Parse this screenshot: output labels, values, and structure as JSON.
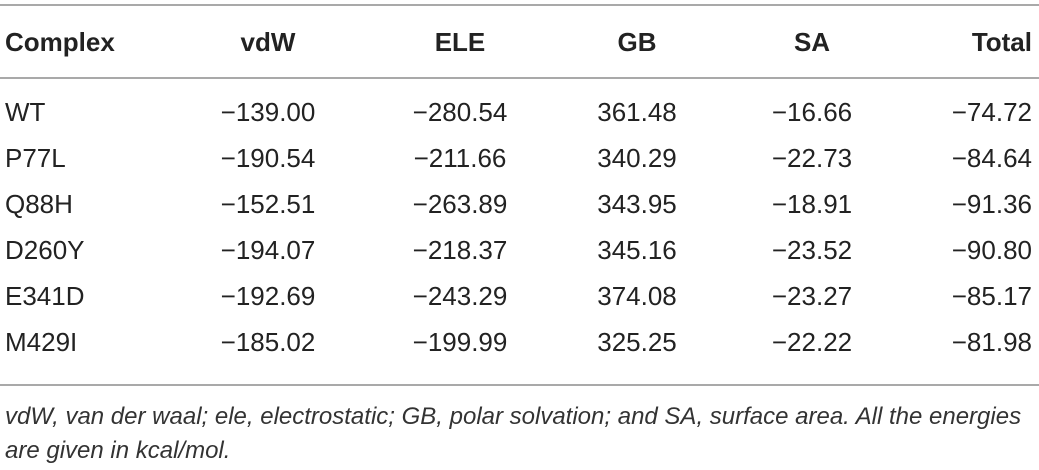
{
  "table": {
    "header": [
      "Complex",
      "vdW",
      "ELE",
      "GB",
      "SA",
      "Total"
    ],
    "rows": [
      [
        "WT",
        "−139.00",
        "−280.54",
        "361.48",
        "−16.66",
        "−74.72"
      ],
      [
        "P77L",
        "−190.54",
        "−211.66",
        "340.29",
        "−22.73",
        "−84.64"
      ],
      [
        "Q88H",
        "−152.51",
        "−263.89",
        "343.95",
        "−18.91",
        "−91.36"
      ],
      [
        "D260Y",
        "−194.07",
        "−218.37",
        "345.16",
        "−23.52",
        "−90.80"
      ],
      [
        "E341D",
        "−192.69",
        "−243.29",
        "374.08",
        "−23.27",
        "−85.17"
      ],
      [
        "M429I",
        "−185.02",
        "−199.99",
        "325.25",
        "−22.22",
        "−81.98"
      ]
    ]
  },
  "footnote": "vdW, van der waal; ele, electrostatic; GB, polar solvation; and SA, surface area. All the energies are given in kcal/mol."
}
